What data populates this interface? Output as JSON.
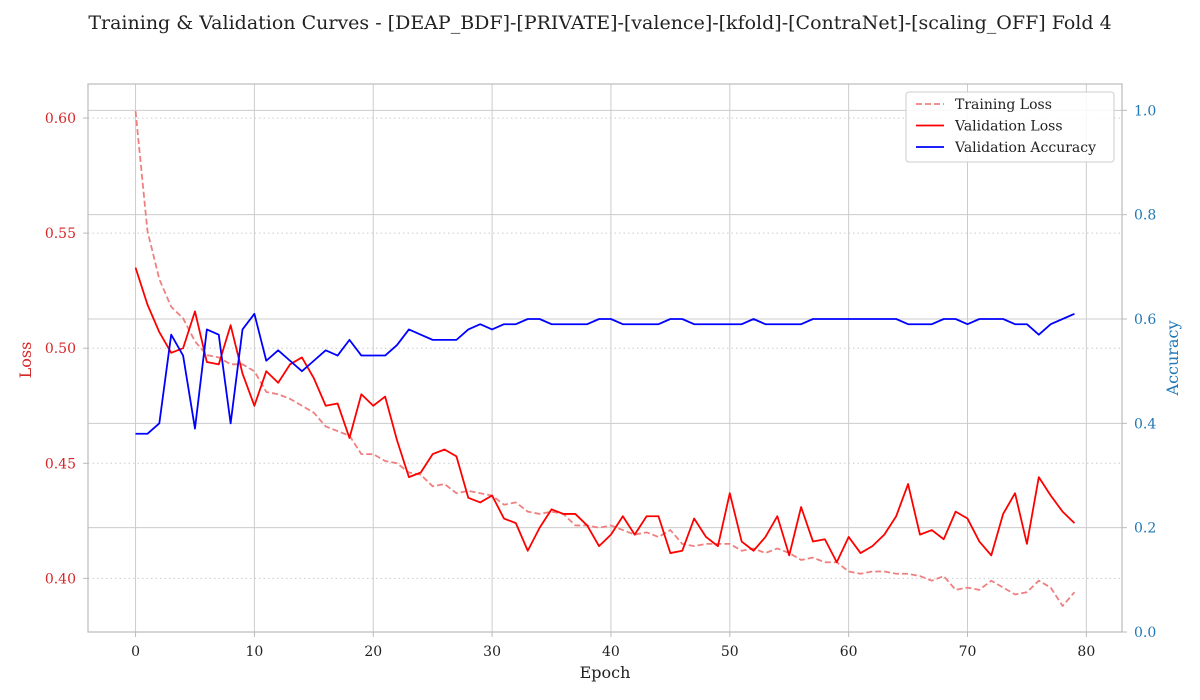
{
  "chart_data": {
    "type": "line",
    "title": "Training & Validation Curves - [DEAP_BDF]-[PRIVATE]-[valence]-[kfold]-[ContraNet]-[scaling_OFF] Fold 4",
    "xlabel": "Epoch",
    "ylabel_left": "Loss",
    "ylabel_right": "Accuracy",
    "xlim": [
      -4,
      83
    ],
    "ylim_left": [
      0.3767,
      0.6148
    ],
    "ylim_right": [
      0.0,
      1.0505
    ],
    "x_ticks": [
      0,
      10,
      20,
      30,
      40,
      50,
      60,
      70,
      80
    ],
    "y_ticks_left": [
      0.4,
      0.45,
      0.5,
      0.55,
      0.6
    ],
    "y_ticks_left_labels": [
      "0.40",
      "0.45",
      "0.50",
      "0.55",
      "0.60"
    ],
    "y_ticks_right": [
      0.0,
      0.2,
      0.4,
      0.6,
      0.8,
      1.0
    ],
    "y_ticks_right_labels": [
      "0.0",
      "0.2",
      "0.4",
      "0.6",
      "0.8",
      "1.0"
    ],
    "grid": true,
    "legend_position": "top-right",
    "colors": {
      "left_axis": "#d62728",
      "right_axis": "#1f77b4",
      "grid": "#cccccc",
      "dotted_grid": "#cccccc"
    },
    "series": [
      {
        "name": "Training Loss",
        "axis": "left",
        "color": "#f08080",
        "style": "dashed",
        "values": [
          0.603,
          0.551,
          0.53,
          0.518,
          0.513,
          0.503,
          0.497,
          0.496,
          0.493,
          0.493,
          0.49,
          0.481,
          0.48,
          0.478,
          0.475,
          0.472,
          0.466,
          0.464,
          0.462,
          0.454,
          0.454,
          0.451,
          0.45,
          0.446,
          0.445,
          0.44,
          0.441,
          0.437,
          0.438,
          0.437,
          0.436,
          0.432,
          0.433,
          0.429,
          0.428,
          0.429,
          0.428,
          0.423,
          0.423,
          0.422,
          0.423,
          0.421,
          0.419,
          0.42,
          0.418,
          0.421,
          0.415,
          0.414,
          0.415,
          0.415,
          0.415,
          0.412,
          0.413,
          0.411,
          0.413,
          0.411,
          0.408,
          0.409,
          0.407,
          0.407,
          0.403,
          0.402,
          0.403,
          0.403,
          0.402,
          0.402,
          0.401,
          0.399,
          0.401,
          0.395,
          0.396,
          0.395,
          0.399,
          0.396,
          0.393,
          0.394,
          0.399,
          0.396,
          0.388,
          0.394
        ]
      },
      {
        "name": "Validation Loss",
        "axis": "left",
        "color": "#ff0000",
        "style": "solid",
        "values": [
          0.535,
          0.519,
          0.507,
          0.498,
          0.5,
          0.516,
          0.494,
          0.493,
          0.51,
          0.489,
          0.475,
          0.49,
          0.485,
          0.493,
          0.496,
          0.487,
          0.475,
          0.476,
          0.461,
          0.48,
          0.475,
          0.479,
          0.46,
          0.444,
          0.446,
          0.454,
          0.456,
          0.453,
          0.435,
          0.433,
          0.436,
          0.426,
          0.424,
          0.412,
          0.422,
          0.43,
          0.428,
          0.428,
          0.423,
          0.414,
          0.419,
          0.427,
          0.419,
          0.427,
          0.427,
          0.411,
          0.412,
          0.426,
          0.418,
          0.414,
          0.437,
          0.416,
          0.412,
          0.418,
          0.427,
          0.41,
          0.431,
          0.416,
          0.417,
          0.407,
          0.418,
          0.411,
          0.414,
          0.419,
          0.427,
          0.441,
          0.419,
          0.421,
          0.417,
          0.429,
          0.426,
          0.416,
          0.41,
          0.428,
          0.437,
          0.415,
          0.444,
          0.436,
          0.429,
          0.424
        ]
      },
      {
        "name": "Validation Accuracy",
        "axis": "right",
        "color": "#0000ff",
        "style": "solid",
        "values": [
          0.38,
          0.38,
          0.4,
          0.57,
          0.53,
          0.39,
          0.58,
          0.57,
          0.4,
          0.58,
          0.61,
          0.52,
          0.54,
          0.52,
          0.5,
          0.52,
          0.54,
          0.53,
          0.56,
          0.53,
          0.53,
          0.53,
          0.55,
          0.58,
          0.57,
          0.56,
          0.56,
          0.56,
          0.58,
          0.59,
          0.58,
          0.59,
          0.59,
          0.6,
          0.6,
          0.59,
          0.59,
          0.59,
          0.59,
          0.6,
          0.6,
          0.59,
          0.59,
          0.59,
          0.59,
          0.6,
          0.6,
          0.59,
          0.59,
          0.59,
          0.59,
          0.59,
          0.6,
          0.59,
          0.59,
          0.59,
          0.59,
          0.6,
          0.6,
          0.6,
          0.6,
          0.6,
          0.6,
          0.6,
          0.6,
          0.59,
          0.59,
          0.59,
          0.6,
          0.6,
          0.59,
          0.6,
          0.6,
          0.6,
          0.59,
          0.59,
          0.57,
          0.59,
          0.6,
          0.61
        ]
      }
    ]
  }
}
